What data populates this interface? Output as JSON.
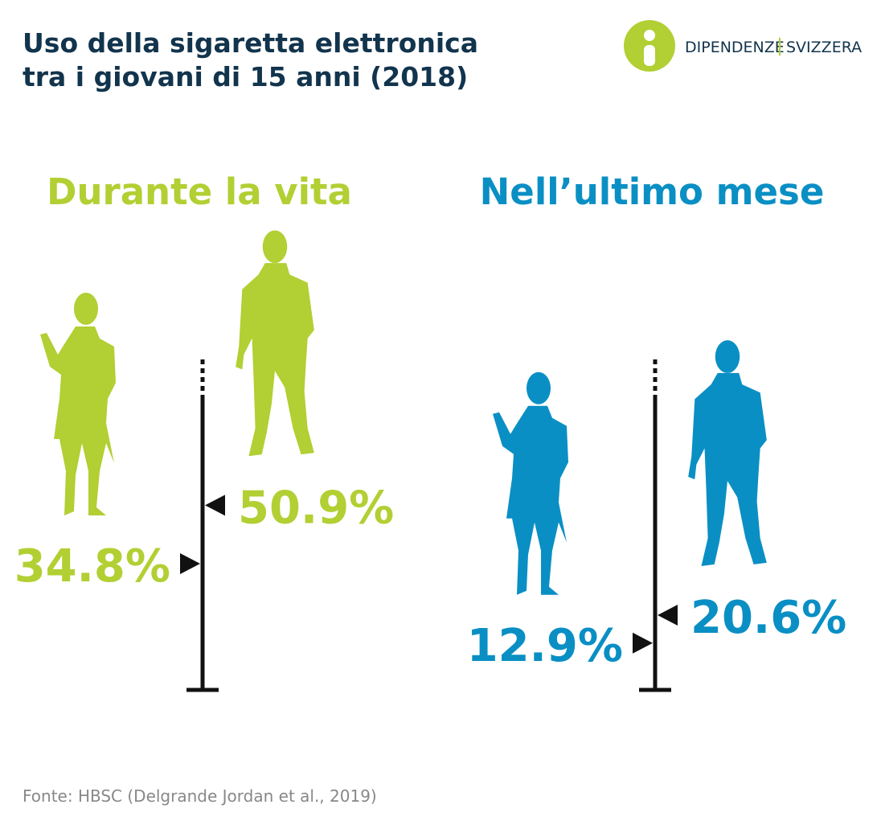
{
  "title": "Uso della sigaretta elettronica\ntra i giovani di 15 anni (2018)",
  "logo": {
    "left": "DIPENDENZE",
    "right": "SVIZZERA"
  },
  "source": "Fonte: HBSC (Delgrande Jordan et al., 2019)",
  "chart_data": [
    {
      "type": "marker",
      "title": "Durante la vita",
      "color": "#b2cf33",
      "values": [
        34.8,
        50.9
      ],
      "value_labels": [
        "34.8%",
        "50.9%"
      ],
      "ylim": [
        0,
        80
      ]
    },
    {
      "type": "marker",
      "title": "Nell’ultimo mese",
      "color": "#0a8fc4",
      "values": [
        12.9,
        20.6
      ],
      "value_labels": [
        "12.9%",
        "20.6%"
      ],
      "ylim": [
        0,
        80
      ]
    }
  ]
}
